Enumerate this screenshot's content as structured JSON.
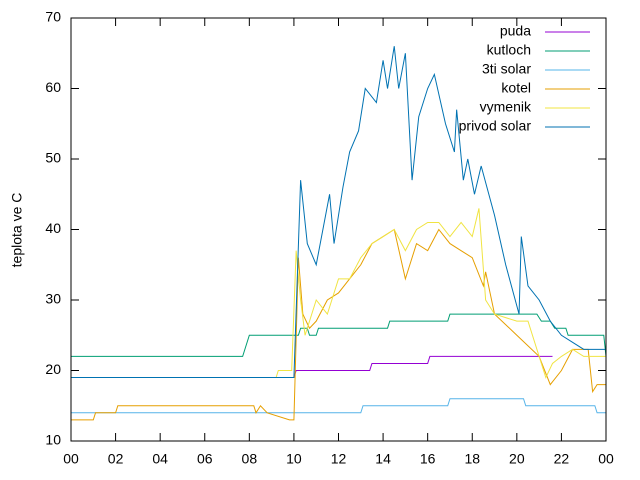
{
  "chart_data": {
    "type": "line",
    "y_label": "teplota ve C",
    "xlim": [
      0,
      24
    ],
    "xticks": [
      {
        "value": 0,
        "label": "00"
      },
      {
        "value": 2,
        "label": "02"
      },
      {
        "value": 4,
        "label": "04"
      },
      {
        "value": 6,
        "label": "06"
      },
      {
        "value": 8,
        "label": "08"
      },
      10,
      12,
      14,
      16,
      18,
      20,
      22,
      {
        "value": 24,
        "label": "00"
      }
    ],
    "ylim": [
      10,
      70
    ],
    "yticks": [
      10,
      20,
      30,
      40,
      50,
      60,
      70
    ],
    "legend": "top-right",
    "series": [
      {
        "name": "puda",
        "color": "#9400d3",
        "x": [
          9.7,
          10.0,
          10.1,
          13.4,
          13.5,
          16.0,
          16.1,
          21.6
        ],
        "values": [
          19,
          19,
          20,
          20,
          21,
          21,
          22,
          22
        ]
      },
      {
        "name": "kutloch",
        "color": "#009e73",
        "x": [
          0,
          7.7,
          8.0,
          10.2,
          10.3,
          10.6,
          10.7,
          11.0,
          11.1,
          14.2,
          14.3,
          16.9,
          17.0,
          20.9,
          21.1,
          21.5,
          21.7,
          22.2,
          22.3,
          23.9,
          24
        ],
        "values": [
          22,
          22,
          25,
          25,
          26,
          26,
          25,
          25,
          26,
          26,
          27,
          27,
          28,
          28,
          27,
          27,
          26,
          26,
          25,
          25,
          22
        ]
      },
      {
        "name": "3ti solar",
        "color": "#56b4e9",
        "x": [
          0,
          13.0,
          13.1,
          16.9,
          17.0,
          20.3,
          20.4,
          23.5,
          23.6,
          24
        ],
        "values": [
          14,
          14,
          15,
          15,
          16,
          16,
          15,
          15,
          14,
          14
        ]
      },
      {
        "name": "kotel",
        "color": "#e69f00",
        "x": [
          0,
          1.0,
          1.1,
          2.0,
          2.1,
          8.2,
          8.3,
          8.5,
          8.8,
          9.8,
          10.0,
          10.2,
          10.4,
          10.7,
          11.0,
          11.5,
          12.0,
          12.5,
          13.0,
          13.5,
          14.0,
          14.5,
          15.0,
          15.5,
          16.0,
          16.5,
          17.0,
          17.5,
          18.0,
          18.5,
          18.6,
          19.0,
          20.0,
          21.0,
          21.5,
          22.0,
          22.5,
          23.2,
          23.4,
          23.6,
          24
        ],
        "values": [
          13,
          13,
          14,
          14,
          15,
          15,
          14,
          15,
          14,
          13,
          13,
          36,
          28,
          26,
          27,
          30,
          31,
          33,
          35,
          38,
          39,
          40,
          33,
          38,
          37,
          40,
          38,
          37,
          36,
          32,
          34,
          28,
          25,
          22,
          18,
          20,
          23,
          23,
          17,
          18,
          18
        ]
      },
      {
        "name": "vymenik",
        "color": "#f0e442",
        "x": [
          0,
          9.2,
          9.3,
          9.9,
          10.1,
          10.3,
          10.5,
          11.0,
          11.5,
          12.0,
          12.5,
          13.0,
          13.5,
          14.0,
          14.5,
          15.0,
          15.5,
          16.0,
          16.5,
          17.0,
          17.5,
          18.0,
          18.3,
          18.6,
          19.0,
          20.0,
          20.5,
          21.0,
          21.3,
          21.6,
          22.0,
          22.5,
          23.0,
          24
        ],
        "values": [
          19,
          19,
          20,
          20,
          37,
          30,
          25,
          30,
          28,
          33,
          33,
          36,
          38,
          39,
          40,
          37,
          40,
          41,
          41,
          39,
          41,
          39,
          43,
          30,
          28,
          27,
          27,
          22,
          19,
          21,
          22,
          23,
          22,
          22
        ]
      },
      {
        "name": "privod solar",
        "color": "#0072b2",
        "x": [
          0,
          10.0,
          10.3,
          10.6,
          11.0,
          11.6,
          11.8,
          12.2,
          12.5,
          12.9,
          13.2,
          13.7,
          14.0,
          14.2,
          14.5,
          14.7,
          15.0,
          15.3,
          15.6,
          16.0,
          16.3,
          16.8,
          17.2,
          17.3,
          17.6,
          17.8,
          18.1,
          18.4,
          19.0,
          19.5,
          20.1,
          20.2,
          20.5,
          21.0,
          21.5,
          22.0,
          22.5,
          23.0,
          24
        ],
        "values": [
          19,
          19,
          47,
          38,
          35,
          45,
          38,
          46,
          51,
          54,
          60,
          58,
          64,
          60,
          66,
          60,
          65,
          47,
          56,
          60,
          62,
          55,
          51,
          57,
          47,
          50,
          45,
          49,
          42,
          35,
          28,
          39,
          32,
          30,
          27,
          25,
          24,
          23,
          23
        ]
      }
    ]
  }
}
